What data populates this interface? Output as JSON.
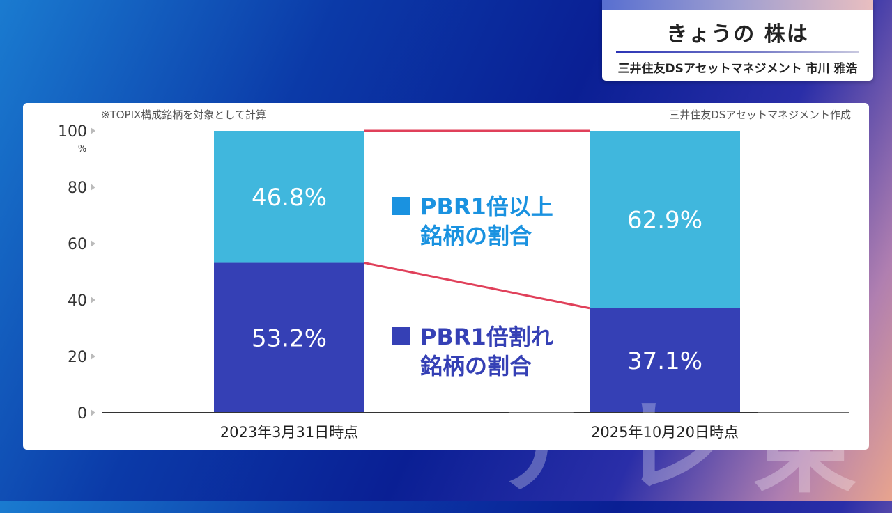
{
  "header": {
    "title": "きょうの 株は",
    "speaker": "三井住友DSアセットマネジメント 市川 雅浩"
  },
  "panel": {
    "note_left": "※TOPIX構成銘柄を対象として計算",
    "note_right": "三井住友DSアセットマネジメント作成"
  },
  "chart_data": {
    "type": "bar",
    "stacked": true,
    "categories": [
      "2023年3月31日時点",
      "2025年10月20日時点"
    ],
    "series": [
      {
        "name": "PBR1倍割れ銘柄の割合",
        "values": [
          53.2,
          37.1
        ],
        "labels": [
          "53.2%",
          "37.1%"
        ],
        "color": "#3540b5"
      },
      {
        "name": "PBR1倍以上銘柄の割合",
        "values": [
          46.8,
          62.9
        ],
        "labels": [
          "46.8%",
          "62.9%"
        ],
        "color": "#40b7dd"
      }
    ],
    "legend": [
      {
        "lines": [
          "PBR1倍以上",
          "銘柄の割合"
        ],
        "color": "#1a92e0",
        "text_color": "#1a92e0"
      },
      {
        "lines": [
          "PBR1倍割れ",
          "銘柄の割合"
        ],
        "color": "#3540b5",
        "text_color": "#3540b5"
      }
    ],
    "ylim": [
      0,
      100
    ],
    "yticks": [
      0,
      20,
      40,
      60,
      80,
      100
    ],
    "yunit": "%",
    "connector_color": "#e0405a"
  }
}
